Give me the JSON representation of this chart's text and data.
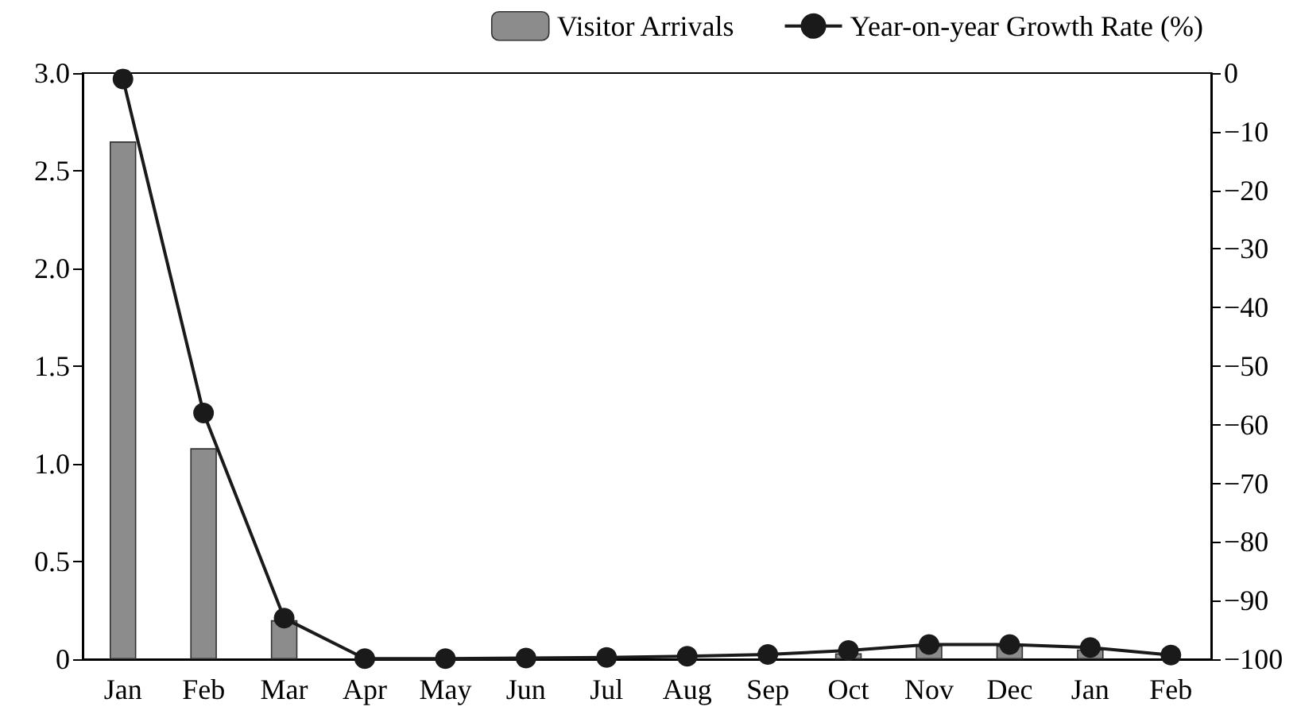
{
  "chart_data": {
    "type": "bar",
    "categories": [
      "Jan",
      "Feb",
      "Mar",
      "Apr",
      "May",
      "Jun",
      "Jul",
      "Aug",
      "Sep",
      "Oct",
      "Nov",
      "Dec",
      "Jan",
      "Feb"
    ],
    "series": [
      {
        "name": "Visitor Arrivals",
        "color": "#8c8c8c",
        "values": [
          2.65,
          1.08,
          0.2,
          0,
          0,
          0,
          0,
          0,
          0,
          0.03,
          0.07,
          0.07,
          0.05,
          0
        ]
      },
      {
        "name": "Year-on-year Growth Rate (%)",
        "type": "line",
        "axis": "y2",
        "color": "#1a1a1a",
        "values": [
          -1,
          -58,
          -93,
          -99.9,
          -99.9,
          -99.8,
          -99.7,
          -99.5,
          -99.2,
          -98.5,
          -97.5,
          -97.5,
          -98,
          -99.3
        ]
      }
    ],
    "ylim": [
      0,
      3
    ],
    "yticks": [
      {
        "value": 0,
        "label": "0"
      },
      0.5,
      {
        "value": 1,
        "label": "1.0"
      },
      1.5,
      {
        "value": 2,
        "label": "2.0"
      },
      2.5,
      {
        "value": 3,
        "label": "3.0"
      }
    ],
    "y2lim": [
      -100,
      0
    ],
    "y2ticks": [
      {
        "value": -100,
        "label": "−100"
      },
      {
        "value": -90,
        "label": "−90"
      },
      {
        "value": -80,
        "label": "−80"
      },
      {
        "value": -70,
        "label": "−70"
      },
      {
        "value": -60,
        "label": "−60"
      },
      {
        "value": -50,
        "label": "−50"
      },
      {
        "value": -40,
        "label": "−40"
      },
      {
        "value": -30,
        "label": "−30"
      },
      {
        "value": -20,
        "label": "−20"
      },
      {
        "value": -10,
        "label": "−10"
      },
      0
    ],
    "legend": "top right",
    "marker": "circle",
    "line_style": "solid",
    "grid": false
  }
}
